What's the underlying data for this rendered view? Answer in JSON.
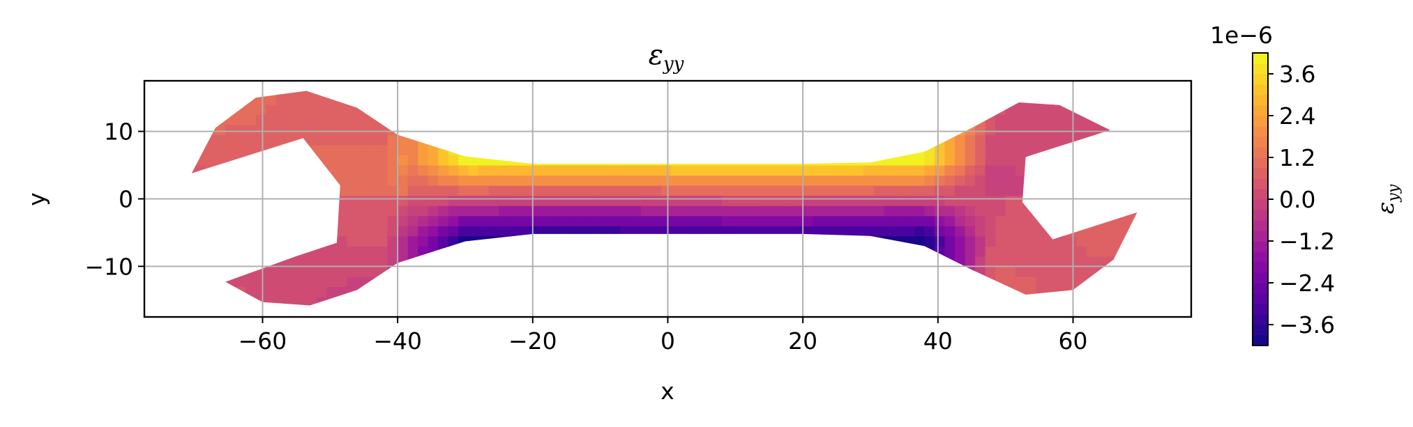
{
  "chart_data": {
    "type": "heatmap",
    "title_main": "ε",
    "title_sub": "yy",
    "xlabel": "x",
    "ylabel": "y",
    "xlim": [
      -77.5,
      77.5
    ],
    "ylim": [
      -17.5,
      17.5
    ],
    "xticks": [
      -60,
      -40,
      -20,
      0,
      20,
      40,
      60
    ],
    "xtick_labels": [
      "−60",
      "−40",
      "−20",
      "0",
      "20",
      "40",
      "60"
    ],
    "yticks": [
      -10,
      0,
      10
    ],
    "ytick_labels": [
      "−10",
      "0",
      "10"
    ],
    "grid": true,
    "colormap": "plasma",
    "colorbar": {
      "label_main": "ε",
      "label_sub": "yy",
      "offset_text": "1e−6",
      "vmin": -4.2,
      "vmax": 4.2,
      "ticks": [
        3.6,
        2.4,
        1.2,
        0.0,
        -1.2,
        -2.4,
        -3.6
      ],
      "tick_labels": [
        "3.6",
        "2.4",
        "1.2",
        "0.0",
        "−1.2",
        "−2.4",
        "−3.6"
      ]
    },
    "field": "strain eps_yy on wrench-shaped domain, ×1e−6; near zero in the jaws, rising to ~+4 along the upper edge of the shaft and falling to ~−4 along the lower edge",
    "shape_outline": [
      [
        -70.5,
        3.8
      ],
      [
        -67,
        10.5
      ],
      [
        -61,
        15
      ],
      [
        -53.5,
        16
      ],
      [
        -46,
        13.5
      ],
      [
        -40,
        9.5
      ],
      [
        -30,
        6.3
      ],
      [
        -20,
        5.2
      ],
      [
        0,
        5.2
      ],
      [
        20,
        5.2
      ],
      [
        30,
        5.4
      ],
      [
        38,
        7
      ],
      [
        45,
        10.5
      ],
      [
        52,
        14.3
      ],
      [
        58,
        13.9
      ],
      [
        65.5,
        10.2
      ],
      [
        53,
        6.2
      ],
      [
        52.5,
        -0.5
      ],
      [
        57,
        -6
      ],
      [
        69.5,
        -2
      ],
      [
        66,
        -9
      ],
      [
        60,
        -13.5
      ],
      [
        53,
        -14.2
      ],
      [
        45,
        -10.5
      ],
      [
        38,
        -7
      ],
      [
        30,
        -5.5
      ],
      [
        20,
        -5.2
      ],
      [
        0,
        -5.2
      ],
      [
        -20,
        -5.2
      ],
      [
        -30,
        -6.3
      ],
      [
        -40,
        -9.5
      ],
      [
        -46,
        -13.5
      ],
      [
        -53,
        -15.8
      ],
      [
        -60,
        -15.3
      ],
      [
        -65.5,
        -12.3
      ],
      [
        -55,
        -8.5
      ],
      [
        -49,
        -6.5
      ],
      [
        -48.5,
        2
      ],
      [
        -54,
        9
      ]
    ],
    "shaft_x_range": [
      -30,
      38
    ],
    "shaft_half_width": 5.2
  }
}
